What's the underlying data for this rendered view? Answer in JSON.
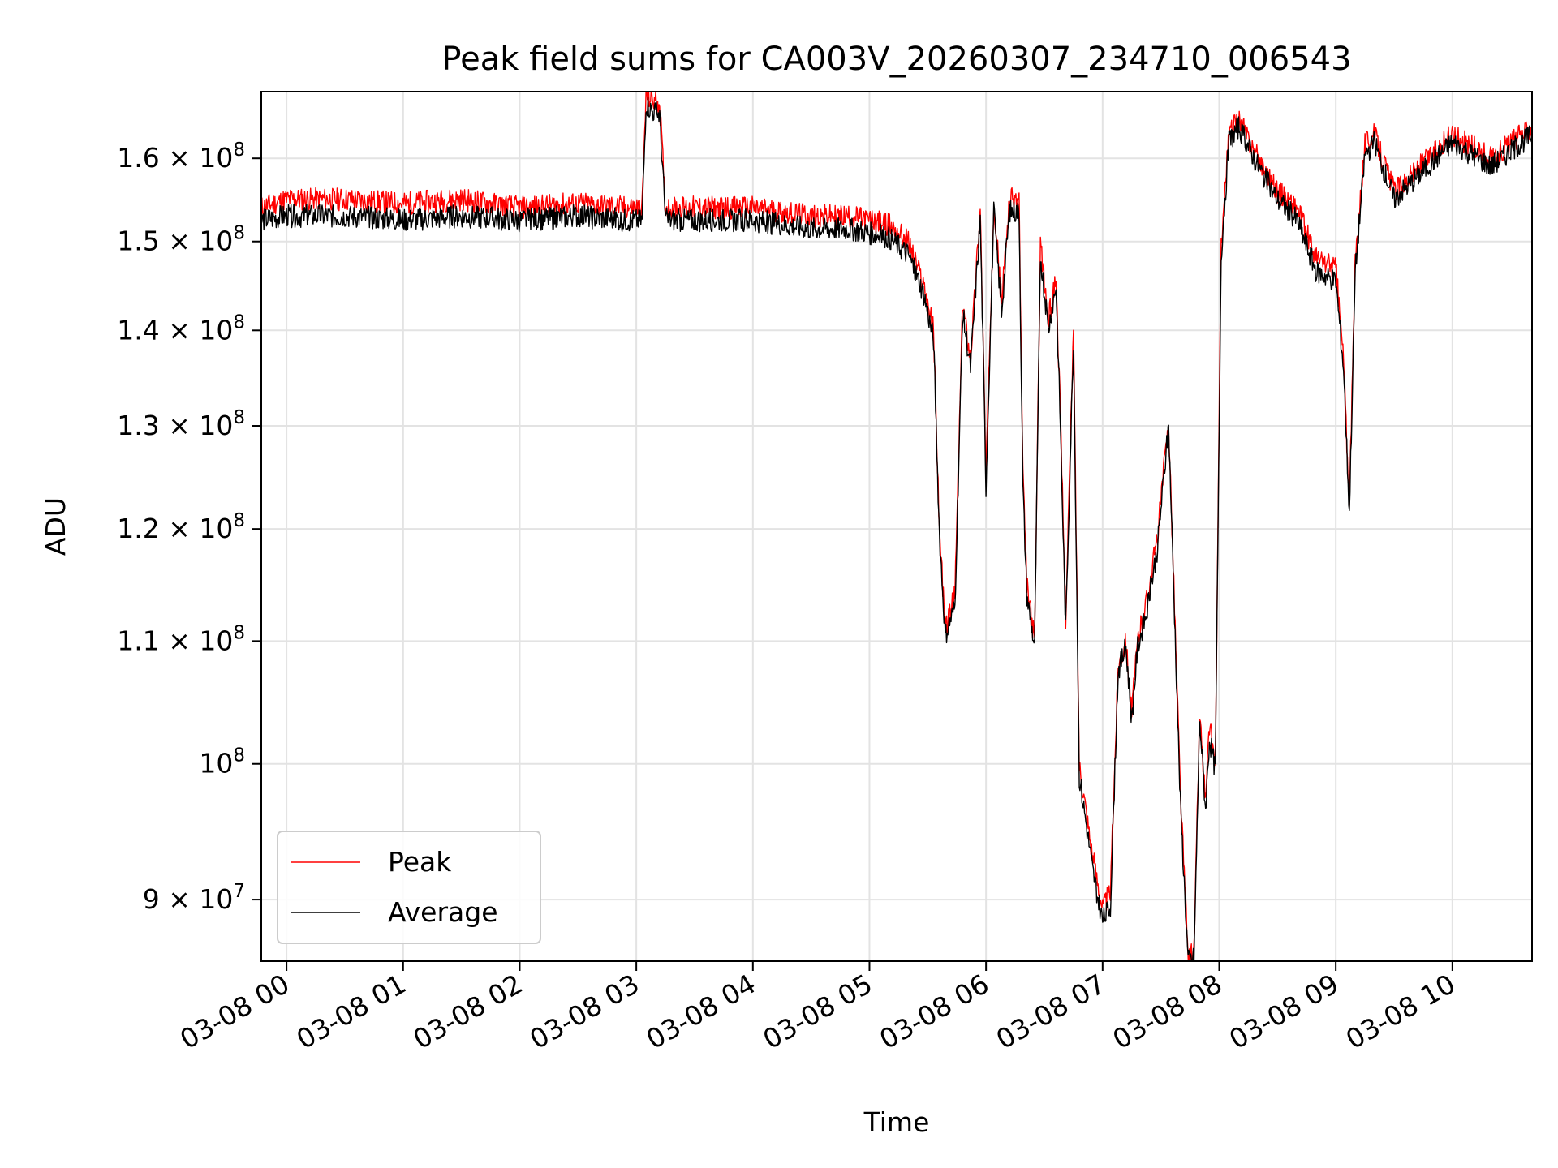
{
  "chart_data": {
    "type": "line",
    "title": "Peak field sums for CA003V_20260307_234710_006543",
    "xlabel": "Time",
    "ylabel": "ADU",
    "yscale": "log",
    "grid": true,
    "legend_placement": "lower-left",
    "xlim": [
      "2026-03-07 23:47",
      "2026-03-08 10:41"
    ],
    "ylim": [
      85800000,
      168500000
    ],
    "x_ticks": [
      "03-08 00",
      "03-08 01",
      "03-08 02",
      "03-08 03",
      "03-08 04",
      "03-08 05",
      "03-08 06",
      "03-08 07",
      "03-08 08",
      "03-08 09",
      "03-08 10"
    ],
    "y_ticks": [
      {
        "value": 90000000,
        "mantissa": "9",
        "exponent": "7"
      },
      {
        "value": 100000000,
        "mantissa": "",
        "exponent": "8"
      },
      {
        "value": 110000000,
        "mantissa": "1.1",
        "exponent": "8"
      },
      {
        "value": 120000000,
        "mantissa": "1.2",
        "exponent": "8"
      },
      {
        "value": 130000000,
        "mantissa": "1.3",
        "exponent": "8"
      },
      {
        "value": 140000000,
        "mantissa": "1.4",
        "exponent": "8"
      },
      {
        "value": 150000000,
        "mantissa": "1.5",
        "exponent": "8"
      },
      {
        "value": 160000000,
        "mantissa": "1.6",
        "exponent": "8"
      }
    ],
    "x": [
      "2026-03-07 23:47",
      "2026-03-08 00:00",
      "2026-03-08 00:30",
      "2026-03-08 01:00",
      "2026-03-08 01:30",
      "2026-03-08 02:00",
      "2026-03-08 02:30",
      "2026-03-08 02:55",
      "2026-03-08 03:03",
      "2026-03-08 03:05",
      "2026-03-08 03:08",
      "2026-03-08 03:12",
      "2026-03-08 03:15",
      "2026-03-08 03:30",
      "2026-03-08 04:00",
      "2026-03-08 04:30",
      "2026-03-08 04:50",
      "2026-03-08 05:10",
      "2026-03-08 05:20",
      "2026-03-08 05:28",
      "2026-03-08 05:33",
      "2026-03-08 05:36",
      "2026-03-08 05:39",
      "2026-03-08 05:44",
      "2026-03-08 05:48",
      "2026-03-08 05:52",
      "2026-03-08 05:57",
      "2026-03-08 06:00",
      "2026-03-08 06:04",
      "2026-03-08 06:08",
      "2026-03-08 06:12",
      "2026-03-08 06:17",
      "2026-03-08 06:19",
      "2026-03-08 06:21",
      "2026-03-08 06:25",
      "2026-03-08 06:28",
      "2026-03-08 06:32",
      "2026-03-08 06:36",
      "2026-03-08 06:38",
      "2026-03-08 06:41",
      "2026-03-08 06:45",
      "2026-03-08 06:48",
      "2026-03-08 06:51",
      "2026-03-08 06:55",
      "2026-03-08 07:00",
      "2026-03-08 07:04",
      "2026-03-08 07:08",
      "2026-03-08 07:12",
      "2026-03-08 07:15",
      "2026-03-08 07:18",
      "2026-03-08 07:22",
      "2026-03-08 07:28",
      "2026-03-08 07:34",
      "2026-03-08 07:40",
      "2026-03-08 07:44",
      "2026-03-08 07:47",
      "2026-03-08 07:50",
      "2026-03-08 07:53",
      "2026-03-08 07:55",
      "2026-03-08 07:58",
      "2026-03-08 08:01",
      "2026-03-08 08:05",
      "2026-03-08 08:10",
      "2026-03-08 08:20",
      "2026-03-08 08:30",
      "2026-03-08 08:40",
      "2026-03-08 08:50",
      "2026-03-08 09:00",
      "2026-03-08 09:04",
      "2026-03-08 09:07",
      "2026-03-08 09:10",
      "2026-03-08 09:15",
      "2026-03-08 09:20",
      "2026-03-08 09:30",
      "2026-03-08 10:00",
      "2026-03-08 10:20",
      "2026-03-08 10:41"
    ],
    "series": [
      {
        "name": "Peak",
        "color": "#ff0000",
        "values": [
          154000000,
          155000000,
          155000000,
          154500000,
          155000000,
          154000000,
          154500000,
          154000000,
          154000000,
          168000000,
          167500000,
          167000000,
          154000000,
          154000000,
          154000000,
          153000000,
          153000000,
          152000000,
          150000000,
          145000000,
          140000000,
          120000000,
          111000000,
          114000000,
          143000000,
          137000000,
          154000000,
          125000000,
          155000000,
          143000000,
          155000000,
          155000000,
          125000000,
          115000000,
          110000000,
          150000000,
          141000000,
          146000000,
          133000000,
          112000000,
          140000000,
          100000000,
          97000000,
          93000000,
          89500000,
          90500000,
          108000000,
          110000000,
          104000000,
          110000000,
          113000000,
          119000000,
          130500000,
          98000000,
          86000000,
          86500000,
          104000000,
          97000000,
          103000000,
          100000000,
          150000000,
          163000000,
          165000000,
          160000000,
          156000000,
          154000000,
          148000000,
          147000000,
          137000000,
          122000000,
          148000000,
          162000000,
          163000000,
          156000000,
          163000000,
          160000000,
          164000000
        ]
      },
      {
        "name": "Average",
        "color": "#000000",
        "values": [
          152500000,
          153000000,
          153000000,
          152500000,
          153000000,
          152500000,
          153000000,
          152500000,
          152500000,
          167000000,
          166000000,
          165500000,
          152500000,
          152500000,
          152500000,
          151500000,
          151500000,
          150500000,
          148500000,
          144000000,
          139000000,
          119500000,
          110500000,
          113000000,
          142000000,
          136000000,
          152500000,
          124000000,
          153500000,
          142000000,
          153500000,
          153500000,
          124000000,
          114000000,
          109500000,
          148500000,
          140000000,
          145000000,
          132000000,
          111000000,
          139000000,
          99000000,
          96000000,
          92000000,
          88500000,
          89500000,
          107500000,
          109500000,
          103500000,
          109500000,
          112000000,
          118000000,
          130000000,
          97000000,
          85800000,
          86000000,
          103500000,
          96500000,
          102000000,
          99500000,
          148500000,
          162000000,
          164000000,
          159000000,
          155000000,
          152500000,
          146500000,
          145500000,
          136000000,
          121500000,
          146500000,
          160500000,
          162000000,
          155000000,
          162000000,
          159000000,
          163000000
        ]
      }
    ]
  }
}
